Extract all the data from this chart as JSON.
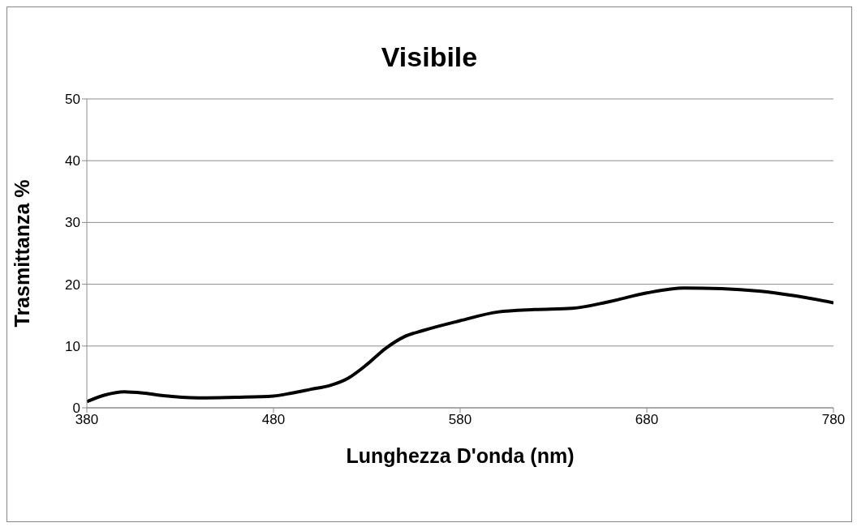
{
  "chart_data": {
    "type": "line",
    "title": "Visibile",
    "xlabel": "Lunghezza D'onda (nm)",
    "ylabel": "Trasmittanza  %",
    "x": [
      380,
      390,
      400,
      410,
      420,
      440,
      460,
      480,
      490,
      500,
      510,
      520,
      530,
      540,
      550,
      560,
      580,
      600,
      620,
      640,
      660,
      680,
      700,
      720,
      740,
      760,
      780
    ],
    "series": [
      {
        "color": "#000000",
        "values": [
          1.0,
          2.1,
          2.6,
          2.4,
          2.0,
          1.6,
          1.7,
          1.9,
          2.4,
          3.0,
          3.6,
          4.8,
          7.0,
          9.6,
          11.5,
          12.5,
          14.1,
          15.5,
          15.9,
          16.1,
          17.2,
          18.6,
          19.4,
          19.3,
          18.9,
          18.1,
          17.0
        ]
      }
    ],
    "xlim": [
      380,
      780
    ],
    "xticks": [
      380,
      480,
      580,
      680,
      780
    ],
    "ylim": [
      0,
      50
    ],
    "yticks": [
      0,
      10,
      20,
      30,
      40,
      50
    ],
    "grid": "y",
    "legend": false,
    "marker": "none",
    "line_style": "solid"
  }
}
